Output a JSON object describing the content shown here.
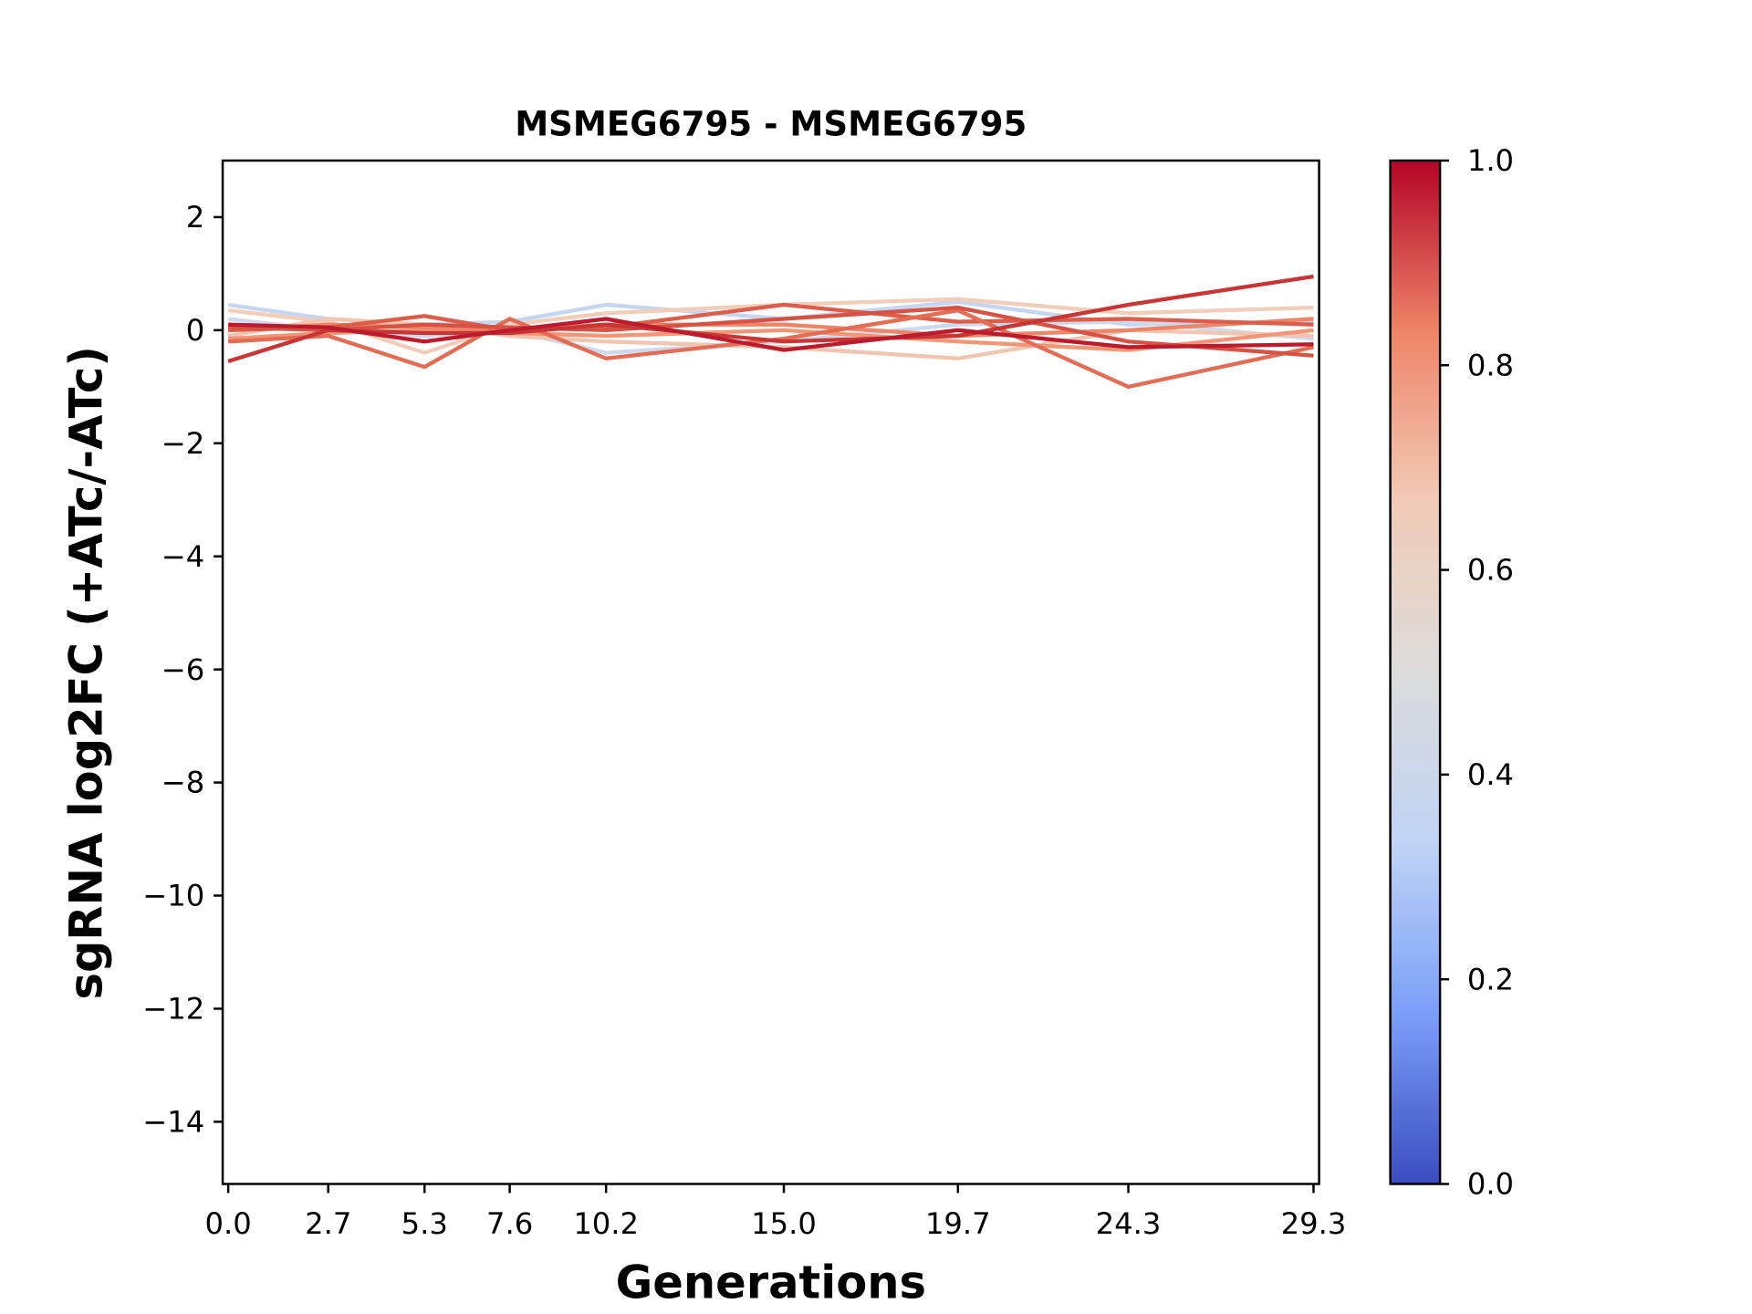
{
  "chart_data": {
    "type": "line",
    "title": "MSMEG6795 - MSMEG6795",
    "xlabel": "Generations",
    "ylabel": "sgRNA log2FC (+ATc/-ATc)",
    "x": [
      0.0,
      2.7,
      5.3,
      7.6,
      10.2,
      15.0,
      19.7,
      24.3,
      29.3
    ],
    "xtick_labels": [
      "0.0",
      "2.7",
      "5.3",
      "7.6",
      "10.2",
      "15.0",
      "19.7",
      "24.3",
      "29.3"
    ],
    "ylim": [
      -15.1,
      3
    ],
    "xlim": [
      -0.15,
      29.45
    ],
    "yticks": [
      2,
      0,
      -2,
      -4,
      -6,
      -8,
      -10,
      -12,
      -14
    ],
    "ytick_labels": [
      "2",
      "0",
      "−2",
      "−4",
      "−6",
      "−8",
      "−10",
      "−12",
      "−14"
    ],
    "grid": false,
    "colormap": "coolwarm",
    "colorbar": {
      "range": [
        0,
        1
      ],
      "ticks": [
        0.0,
        0.2,
        0.4,
        0.6,
        0.8,
        1.0
      ],
      "tick_labels": [
        "0.0",
        "0.2",
        "0.4",
        "0.6",
        "0.8",
        "1.0"
      ],
      "colors": [
        "#3b4cc0",
        "#7b9ff9",
        "#c0d4f5",
        "#dddcdc",
        "#f2cbb7",
        "#ee8468",
        "#b40426"
      ]
    },
    "series": [
      {
        "value": 0.4,
        "color": "#c5d6f2",
        "y": [
          0.45,
          0.2,
          0.1,
          0.15,
          0.45,
          0.2,
          0.5,
          0.1,
          0.15
        ]
      },
      {
        "value": 0.45,
        "color": "#cfd9ee",
        "y": [
          0.2,
          0.0,
          -0.1,
          0.0,
          -0.4,
          -0.2,
          0.1,
          0.15,
          -0.15
        ]
      },
      {
        "value": 0.6,
        "color": "#f1cdba",
        "y": [
          0.35,
          0.15,
          -0.4,
          0.1,
          0.3,
          0.45,
          0.55,
          0.3,
          0.4
        ]
      },
      {
        "value": 0.62,
        "color": "#f2c5b0",
        "y": [
          -0.1,
          0.2,
          0.1,
          -0.1,
          -0.2,
          -0.3,
          -0.5,
          0.0,
          -0.1
        ]
      },
      {
        "value": 0.75,
        "color": "#f39577",
        "y": [
          -0.15,
          -0.05,
          0.0,
          -0.05,
          -0.1,
          0.0,
          -0.2,
          -0.35,
          0.0
        ]
      },
      {
        "value": 0.8,
        "color": "#ee8468",
        "y": [
          0.0,
          0.1,
          0.05,
          0.0,
          0.1,
          0.1,
          -0.1,
          0.0,
          0.2
        ]
      },
      {
        "value": 0.88,
        "color": "#dc5d4a",
        "y": [
          0.0,
          0.05,
          0.25,
          0.0,
          0.05,
          0.45,
          0.15,
          0.2,
          0.1
        ]
      },
      {
        "value": 0.85,
        "color": "#e36c55",
        "y": [
          -0.2,
          -0.1,
          -0.65,
          0.2,
          -0.5,
          -0.15,
          0.35,
          -1.0,
          -0.3
        ]
      },
      {
        "value": 0.9,
        "color": "#d65244",
        "y": [
          0.05,
          0.0,
          0.1,
          0.05,
          0.0,
          0.2,
          0.4,
          -0.2,
          -0.45
        ]
      },
      {
        "value": 0.95,
        "color": "#c73635",
        "y": [
          -0.55,
          0.0,
          -0.05,
          -0.05,
          0.1,
          -0.2,
          -0.1,
          0.45,
          0.95
        ]
      },
      {
        "value": 0.98,
        "color": "#bb1b2c",
        "y": [
          0.1,
          0.05,
          -0.2,
          0.0,
          0.2,
          -0.35,
          0.0,
          -0.3,
          -0.25
        ]
      }
    ]
  }
}
